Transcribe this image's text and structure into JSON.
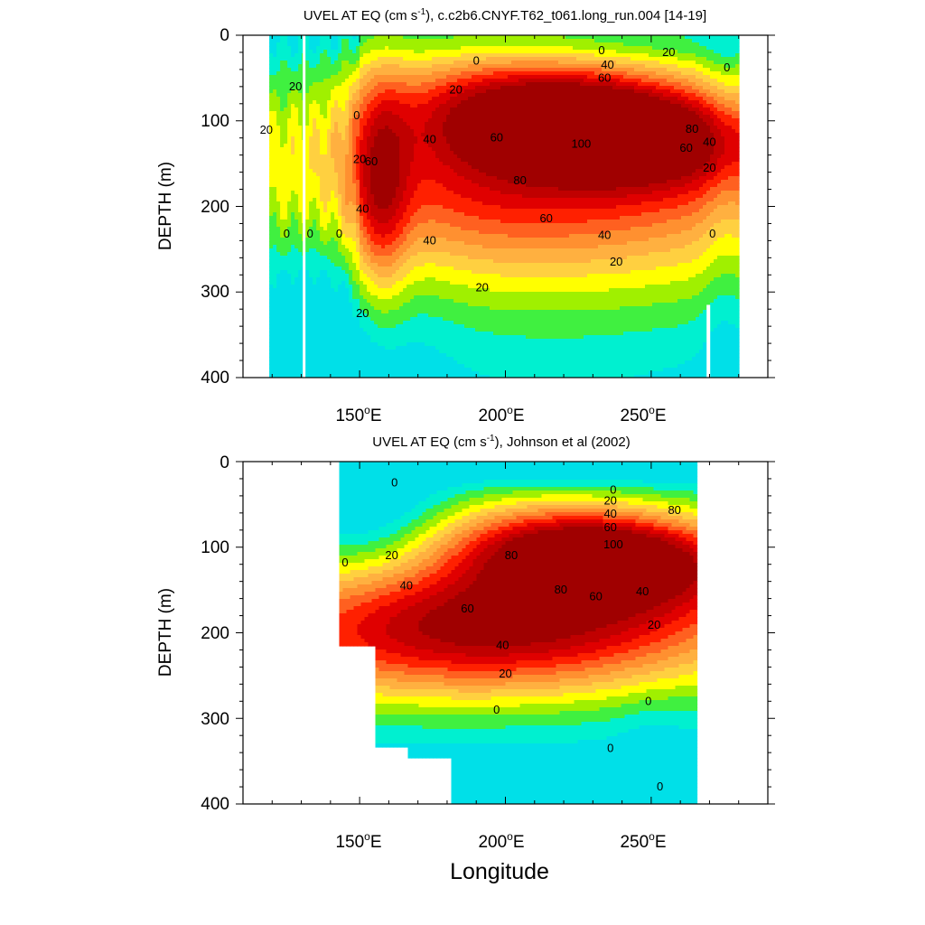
{
  "figure": {
    "x_axis_label": "Longitude",
    "color_scale": {
      "levels": [
        -20,
        0,
        10,
        20,
        30,
        40,
        50,
        60,
        70,
        80,
        90,
        100,
        110
      ],
      "colors": [
        "#00e0e8",
        "#00f0d0",
        "#40f040",
        "#a0f000",
        "#ffff00",
        "#ffd040",
        "#ffb040",
        "#ff9030",
        "#ff6020",
        "#ff2000",
        "#e00000",
        "#c00000",
        "#a00000"
      ]
    }
  },
  "chart_data": [
    {
      "type": "contour",
      "title_prefix": "UVEL AT EQ (cm s",
      "title_exp": "-1",
      "title_suffix": "), c.c2b6.CNYF.T62_t061.long_run.004 [14-19]",
      "ylabel": "DEPTH (m)",
      "xlim": [
        110,
        290
      ],
      "ylim": [
        0,
        400
      ],
      "y_reversed": true,
      "x_ticks": [
        {
          "value": 150,
          "label": "150",
          "deg": "o",
          "dir": "E"
        },
        {
          "value": 200,
          "label": "200",
          "deg": "o",
          "dir": "E"
        },
        {
          "value": 250,
          "label": "250",
          "deg": "o",
          "dir": "E"
        }
      ],
      "y_ticks": [
        {
          "value": 0,
          "label": "0"
        },
        {
          "value": 100,
          "label": "100"
        },
        {
          "value": 200,
          "label": "200"
        },
        {
          "value": 300,
          "label": "300"
        },
        {
          "value": 400,
          "label": "400"
        }
      ],
      "data_extent": {
        "lon_min": 119,
        "lon_max": 280,
        "depth_min": 0,
        "depth_max": 400
      },
      "core": {
        "lon": 231,
        "depth": 100,
        "max_speed": 110
      },
      "contour_labels": [
        {
          "text": "0",
          "lon": 190,
          "depth": 30
        },
        {
          "text": "0",
          "lon": 233,
          "depth": 18
        },
        {
          "text": "20",
          "lon": 256,
          "depth": 20
        },
        {
          "text": "40",
          "lon": 235,
          "depth": 35
        },
        {
          "text": "60",
          "lon": 234,
          "depth": 50
        },
        {
          "text": "20",
          "lon": 183,
          "depth": 64
        },
        {
          "text": "60",
          "lon": 197,
          "depth": 120
        },
        {
          "text": "100",
          "lon": 226,
          "depth": 127
        },
        {
          "text": "80",
          "lon": 264,
          "depth": 110
        },
        {
          "text": "60",
          "lon": 262,
          "depth": 132
        },
        {
          "text": "40",
          "lon": 270,
          "depth": 125
        },
        {
          "text": "20",
          "lon": 270,
          "depth": 155
        },
        {
          "text": "40",
          "lon": 174,
          "depth": 122
        },
        {
          "text": "80",
          "lon": 205,
          "depth": 170
        },
        {
          "text": "60",
          "lon": 214,
          "depth": 214
        },
        {
          "text": "40",
          "lon": 234,
          "depth": 234
        },
        {
          "text": "40",
          "lon": 174,
          "depth": 240
        },
        {
          "text": "20",
          "lon": 192,
          "depth": 295
        },
        {
          "text": "20",
          "lon": 238,
          "depth": 265
        },
        {
          "text": "20",
          "lon": 151,
          "depth": 325
        },
        {
          "text": "40",
          "lon": 151,
          "depth": 203
        },
        {
          "text": "60",
          "lon": 154,
          "depth": 148
        },
        {
          "text": "20",
          "lon": 150,
          "depth": 145
        },
        {
          "text": "0",
          "lon": 149,
          "depth": 94
        },
        {
          "text": "20",
          "lon": 128,
          "depth": 60
        },
        {
          "text": "20",
          "lon": 118,
          "depth": 111
        },
        {
          "text": "0",
          "lon": 125,
          "depth": 232
        },
        {
          "text": "0",
          "lon": 133,
          "depth": 232
        },
        {
          "text": "0",
          "lon": 143,
          "depth": 232
        },
        {
          "text": "0",
          "lon": 271,
          "depth": 232
        },
        {
          "text": "0",
          "lon": 276,
          "depth": 38
        }
      ]
    },
    {
      "type": "contour",
      "title_prefix": "UVEL AT EQ (cm s",
      "title_exp": "-1",
      "title_suffix": "), Johnson et al (2002)",
      "ylabel": "DEPTH (m)",
      "xlim": [
        110,
        290
      ],
      "ylim": [
        0,
        400
      ],
      "y_reversed": true,
      "x_ticks": [
        {
          "value": 150,
          "label": "150",
          "deg": "o",
          "dir": "E"
        },
        {
          "value": 200,
          "label": "200",
          "deg": "o",
          "dir": "E"
        },
        {
          "value": 250,
          "label": "250",
          "deg": "o",
          "dir": "E"
        }
      ],
      "y_ticks": [
        {
          "value": 0,
          "label": "0"
        },
        {
          "value": 100,
          "label": "100"
        },
        {
          "value": 200,
          "label": "200"
        },
        {
          "value": 300,
          "label": "300"
        },
        {
          "value": 400,
          "label": "400"
        }
      ],
      "data_extent": {
        "lon_min": 143,
        "lon_max": 265,
        "depth_min": 0,
        "depth_max": 400
      },
      "missing_region": [
        [
          143,
          215
        ],
        [
          156,
          215
        ],
        [
          156,
          335
        ],
        [
          166,
          335
        ],
        [
          166,
          345
        ],
        [
          181,
          345
        ],
        [
          181,
          400
        ],
        [
          143,
          400
        ]
      ],
      "core": {
        "lon": 232,
        "depth": 100,
        "max_speed": 110
      },
      "contour_labels": [
        {
          "text": "0",
          "lon": 162,
          "depth": 25
        },
        {
          "text": "0",
          "lon": 145,
          "depth": 118
        },
        {
          "text": "20",
          "lon": 161,
          "depth": 110
        },
        {
          "text": "40",
          "lon": 166,
          "depth": 145
        },
        {
          "text": "60",
          "lon": 187,
          "depth": 172
        },
        {
          "text": "80",
          "lon": 202,
          "depth": 110
        },
        {
          "text": "80",
          "lon": 219,
          "depth": 150
        },
        {
          "text": "60",
          "lon": 231,
          "depth": 158
        },
        {
          "text": "40",
          "lon": 247,
          "depth": 152
        },
        {
          "text": "20",
          "lon": 251,
          "depth": 191
        },
        {
          "text": "0",
          "lon": 237,
          "depth": 33
        },
        {
          "text": "20",
          "lon": 236,
          "depth": 46
        },
        {
          "text": "40",
          "lon": 236,
          "depth": 61
        },
        {
          "text": "60",
          "lon": 236,
          "depth": 77
        },
        {
          "text": "80",
          "lon": 258,
          "depth": 57
        },
        {
          "text": "100",
          "lon": 237,
          "depth": 97
        },
        {
          "text": "40",
          "lon": 199,
          "depth": 215
        },
        {
          "text": "20",
          "lon": 200,
          "depth": 248
        },
        {
          "text": "0",
          "lon": 197,
          "depth": 290
        },
        {
          "text": "0",
          "lon": 249,
          "depth": 280
        },
        {
          "text": "0",
          "lon": 236,
          "depth": 335
        },
        {
          "text": "0",
          "lon": 253,
          "depth": 380
        }
      ]
    }
  ]
}
